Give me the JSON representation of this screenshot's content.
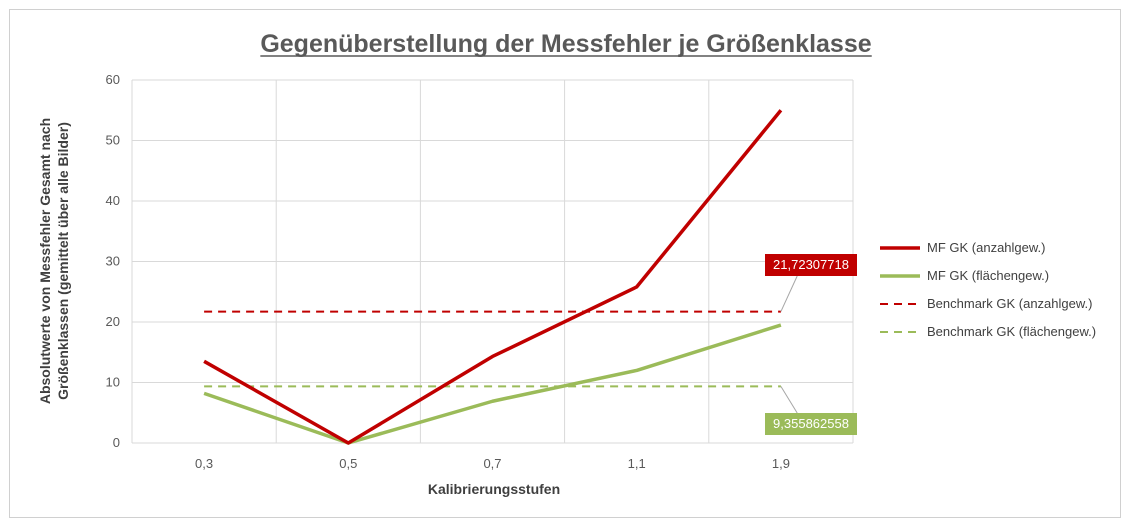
{
  "chart_data": {
    "type": "line",
    "title": "Gegenüberstellung der Messfehler je Größenklasse",
    "xlabel": "Kalibrierungsstufen",
    "ylabel_line1": "Absolutwerte von Messfehler Gesamt nach",
    "ylabel_line2": "Größenklassen (gemittelt über alle Bilder)",
    "categories": [
      "0,3",
      "0,5",
      "0,7",
      "1,1",
      "1,9"
    ],
    "ylim": [
      0,
      60
    ],
    "yticks": [
      "0",
      "10",
      "20",
      "30",
      "40",
      "50",
      "60"
    ],
    "grid": true,
    "legend_position": "right",
    "series": [
      {
        "name": "MF GK (anzahlgew.)",
        "values": [
          13.5,
          0,
          14.3,
          25.8,
          55
        ],
        "color": "#c00000",
        "dash": false
      },
      {
        "name": "MF GK (flächengew.)",
        "values": [
          8.2,
          0,
          6.9,
          12,
          19.5
        ],
        "color": "#9bbb59",
        "dash": false
      },
      {
        "name": "Benchmark GK (anzahlgew.)",
        "values": [
          21.72307718,
          21.72307718,
          21.72307718,
          21.72307718,
          21.72307718
        ],
        "color": "#c00000",
        "dash": true
      },
      {
        "name": "Benchmark GK (flächengew.)",
        "values": [
          9.355862558,
          9.355862558,
          9.355862558,
          9.355862558,
          9.355862558
        ],
        "color": "#9bbb59",
        "dash": true
      }
    ],
    "annotations": [
      {
        "text": "21,72307718",
        "series": "Benchmark GK (anzahlgew.)",
        "color": "#c00000"
      },
      {
        "text": "9,355862558",
        "series": "Benchmark GK (flächengew.)",
        "color": "#9bbb59"
      }
    ]
  }
}
